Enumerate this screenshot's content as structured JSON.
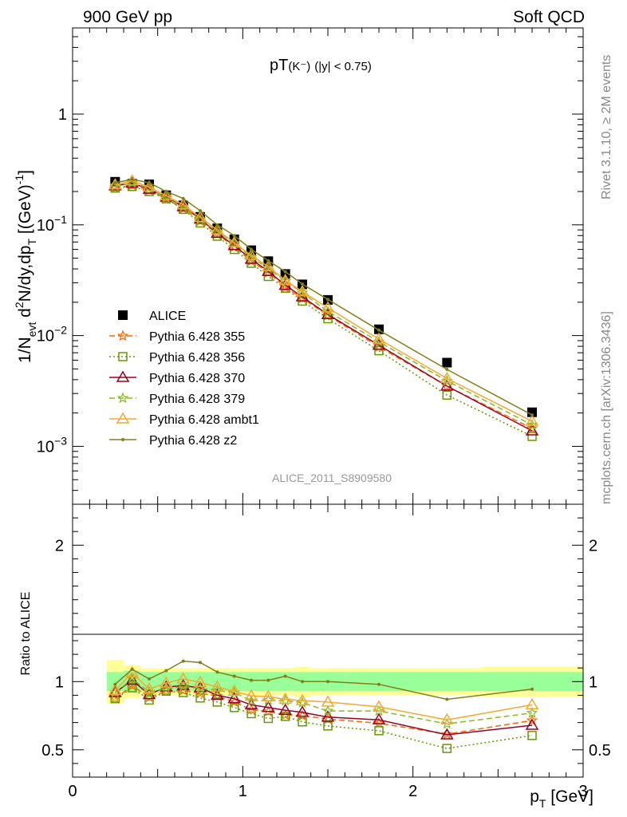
{
  "header": {
    "left": "900 GeV pp",
    "right": "Soft QCD"
  },
  "side_labels": {
    "top": "Rivet 3.1.10, ≥ 2M events",
    "bottom": "mcplots.cern.ch [arXiv:1306.3436]"
  },
  "analysis_id": "ALICE_2011_S8909580",
  "chart_data": [
    {
      "type": "scatter",
      "title": "pT(K⁻) (|y| < 0.75)",
      "title_main": "pT",
      "title_particle": "(K⁻)",
      "title_cut": "(|y| < 0.75)",
      "ylabel": "1/N_evt d²N/dy,dp_T [(GeV)⁻¹]",
      "ylabel_parts": {
        "a": "1/N",
        "b": "evt",
        "c": " d",
        "d": "2",
        "e": "N/dy,dp",
        "f": "T",
        "g": " [(GeV)",
        "h": "-1",
        "i": "]"
      },
      "xlabel": "",
      "xlim": [
        0,
        3
      ],
      "ylim": [
        0.0003,
        6
      ],
      "yscale": "log",
      "y_ticks": [
        {
          "value": 0.001,
          "base": "10",
          "exp": "−3"
        },
        {
          "value": 0.01,
          "base": "10",
          "exp": "−2"
        },
        {
          "value": 0.1,
          "base": "10",
          "exp": "−1"
        },
        {
          "value": 1,
          "label": "1"
        }
      ],
      "x": [
        0.25,
        0.35,
        0.45,
        0.55,
        0.65,
        0.75,
        0.85,
        0.95,
        1.05,
        1.15,
        1.25,
        1.35,
        1.5,
        1.8,
        2.2,
        2.7
      ],
      "series": [
        {
          "name": "ALICE",
          "color": "#000000",
          "marker": "square",
          "values": [
            0.245,
            0.235,
            0.232,
            0.185,
            0.15,
            0.118,
            0.093,
            0.074,
            0.059,
            0.047,
            0.036,
            0.029,
            0.021,
            0.0114,
            0.0057,
            0.00203
          ]
        },
        {
          "name": "Pythia 6.428 355",
          "color": "#ff6600",
          "dash": "7,4",
          "marker": "star",
          "values": [
            0.215,
            0.228,
            0.205,
            0.172,
            0.14,
            0.108,
            0.083,
            0.063,
            0.047,
            0.037,
            0.0272,
            0.0217,
            0.0152,
            0.0079,
            0.0035,
            0.00145
          ]
        },
        {
          "name": "Pythia 6.428 356",
          "color": "#669900",
          "dash": "2,3",
          "marker": "open-square",
          "values": [
            0.215,
            0.222,
            0.2,
            0.172,
            0.138,
            0.104,
            0.079,
            0.06,
            0.045,
            0.0342,
            0.0268,
            0.0205,
            0.0142,
            0.0073,
            0.0029,
            0.00123
          ]
        },
        {
          "name": "Pythia 6.428 370",
          "color": "#990022",
          "dash": "",
          "marker": "open-triangle",
          "values": [
            0.225,
            0.238,
            0.21,
            0.178,
            0.146,
            0.113,
            0.084,
            0.065,
            0.049,
            0.038,
            0.0285,
            0.0224,
            0.0155,
            0.0082,
            0.0035,
            0.00138
          ]
        },
        {
          "name": "Pythia 6.428 379",
          "color": "#88bb22",
          "dash": "7,4",
          "marker": "star",
          "values": [
            0.225,
            0.24,
            0.215,
            0.175,
            0.145,
            0.112,
            0.087,
            0.068,
            0.051,
            0.0406,
            0.031,
            0.0244,
            0.0165,
            0.0088,
            0.0039,
            0.00156
          ]
        },
        {
          "name": "Pythia 6.428 ambt1",
          "color": "#f4a830",
          "dash": "",
          "marker": "open-triangle",
          "values": [
            0.23,
            0.25,
            0.22,
            0.183,
            0.152,
            0.117,
            0.09,
            0.069,
            0.053,
            0.042,
            0.0315,
            0.025,
            0.0178,
            0.0093,
            0.0041,
            0.00168
          ]
        },
        {
          "name": "Pythia 6.428 z2",
          "color": "#808018",
          "dash": "",
          "marker": "dot",
          "values": [
            0.24,
            0.257,
            0.24,
            0.2,
            0.173,
            0.134,
            0.1,
            0.08,
            0.06,
            0.0475,
            0.0377,
            0.0292,
            0.0212,
            0.0112,
            0.00495,
            0.00192
          ]
        }
      ]
    },
    {
      "type": "scatter",
      "ylabel": "Ratio to ALICE",
      "xlabel": "p_T [GeV]",
      "xlabel_parts": {
        "a": "p",
        "b": "T",
        "c": " [GeV]"
      },
      "xlim": [
        0,
        3
      ],
      "ylim": [
        0.3,
        2.3
      ],
      "x_ticks": [
        0,
        1,
        2,
        3
      ],
      "y_ticks": [
        0.5,
        1,
        2
      ],
      "band_x": [
        0.2,
        0.3,
        0.4,
        0.5,
        0.6,
        0.7,
        0.8,
        0.9,
        1.0,
        1.1,
        1.2,
        1.3,
        1.4,
        1.6,
        2.0,
        2.4,
        3.0
      ],
      "band_stat": [
        0.07,
        0.08,
        0.07,
        0.07,
        0.07,
        0.07,
        0.07,
        0.07,
        0.07,
        0.07,
        0.07,
        0.07,
        0.07,
        0.07,
        0.07,
        0.07
      ],
      "band_tot": [
        0.16,
        0.12,
        0.1,
        0.1,
        0.1,
        0.1,
        0.1,
        0.1,
        0.1,
        0.1,
        0.1,
        0.11,
        0.1,
        0.1,
        0.1,
        0.11
      ],
      "x": [
        0.25,
        0.35,
        0.45,
        0.55,
        0.65,
        0.75,
        0.85,
        0.95,
        1.05,
        1.15,
        1.25,
        1.35,
        1.5,
        1.8,
        2.2,
        2.7
      ],
      "series": [
        {
          "name": "Pythia 6.428 355",
          "color": "#ff6600",
          "dash": "7,4",
          "marker": "star",
          "values": [
            0.875,
            0.97,
            0.885,
            0.93,
            0.935,
            0.915,
            0.895,
            0.85,
            0.795,
            0.78,
            0.755,
            0.75,
            0.725,
            0.695,
            0.615,
            0.715
          ]
        },
        {
          "name": "Pythia 6.428 356",
          "color": "#669900",
          "dash": "2,3",
          "marker": "open-square",
          "values": [
            0.875,
            0.955,
            0.865,
            0.93,
            0.92,
            0.88,
            0.85,
            0.81,
            0.765,
            0.73,
            0.745,
            0.705,
            0.675,
            0.64,
            0.51,
            0.605
          ]
        },
        {
          "name": "Pythia 6.428 370",
          "color": "#990022",
          "dash": "",
          "marker": "open-triangle",
          "values": [
            0.92,
            1.01,
            0.905,
            0.96,
            0.97,
            0.955,
            0.9,
            0.875,
            0.83,
            0.81,
            0.79,
            0.775,
            0.74,
            0.72,
            0.61,
            0.68
          ]
        },
        {
          "name": "Pythia 6.428 379",
          "color": "#88bb22",
          "dash": "7,4",
          "marker": "star",
          "values": [
            0.92,
            1.02,
            0.925,
            0.945,
            0.965,
            0.95,
            0.935,
            0.92,
            0.86,
            0.865,
            0.86,
            0.845,
            0.785,
            0.785,
            0.69,
            0.77
          ]
        },
        {
          "name": "Pythia 6.428 ambt1",
          "color": "#f4a830",
          "dash": "",
          "marker": "open-triangle",
          "values": [
            0.935,
            1.065,
            0.945,
            0.99,
            1.02,
            0.995,
            0.96,
            0.93,
            0.895,
            0.89,
            0.87,
            0.86,
            0.85,
            0.815,
            0.72,
            0.83
          ]
        },
        {
          "name": "Pythia 6.428 z2",
          "color": "#808018",
          "dash": "",
          "marker": "dot",
          "values": [
            0.98,
            1.09,
            1.02,
            1.08,
            1.15,
            1.14,
            1.07,
            1.04,
            1.01,
            1.01,
            1.04,
            1.0,
            1.0,
            0.98,
            0.87,
            0.945
          ]
        }
      ]
    }
  ]
}
